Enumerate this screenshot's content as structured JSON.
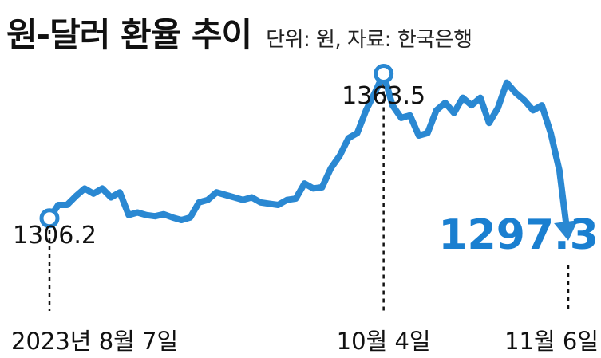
{
  "header": {
    "title": "원-달러 환율 추이",
    "subtitle": "단위: 원, 자료: 한국은행"
  },
  "colors": {
    "line": "#2a88d2",
    "text": "#111111",
    "highlight": "#1a7fd0"
  },
  "chart_data": {
    "type": "line",
    "title": "원-달러 환율 추이",
    "subtitle": "단위: 원, 자료: 한국은행",
    "series": [
      {
        "values": [
          1306.2,
          1311.5,
          1311.5,
          1315.0,
          1318.0,
          1316.0,
          1318.0,
          1314.5,
          1316.5,
          1307.5,
          1308.5,
          1307.5,
          1307.0,
          1307.8,
          1306.5,
          1305.5,
          1306.5,
          1312.5,
          1313.5,
          1316.5,
          1315.5,
          1314.5,
          1313.5,
          1314.5,
          1312.5,
          1312.0,
          1311.5,
          1313.5,
          1314.0,
          1320.0,
          1318.0,
          1318.5,
          1326.0,
          1331.0,
          1338.0,
          1340.0,
          1349.0,
          1356.0,
          1363.5,
          1351.0,
          1346.0,
          1347.0,
          1339.0,
          1340.0,
          1349.0,
          1352.0,
          1348.0,
          1354.0,
          1351.0,
          1354.0,
          1344.0,
          1350.0,
          1360.0,
          1356.0,
          1353.0,
          1349.0,
          1351.0,
          1340.0,
          1325.0,
          1297.3
        ]
      }
    ],
    "x_start": "2023-08-07",
    "x_end": "2023-11-06",
    "markers": [
      {
        "index": 0,
        "label": "1306.2"
      },
      {
        "index": 38,
        "label": "1363.5"
      },
      {
        "index": 59,
        "label": "1297.3"
      }
    ],
    "x_labels": [
      {
        "index": 0,
        "text": "2023년 8월 7일"
      },
      {
        "index": 38,
        "text": "10월 4일"
      },
      {
        "index": 59,
        "text": "11월 6일"
      }
    ],
    "ylim": [
      1290,
      1370
    ],
    "grid": false,
    "legend": "none"
  }
}
